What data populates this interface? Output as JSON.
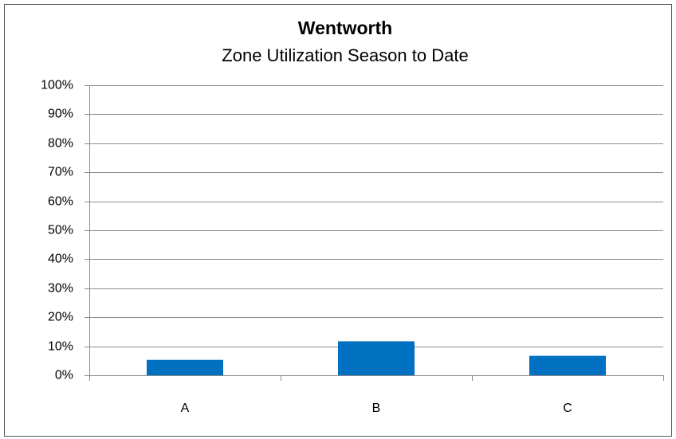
{
  "chart_data": {
    "type": "bar",
    "title": "Wentworth",
    "subtitle": "Zone Utilization Season to Date",
    "categories": [
      "A",
      "B",
      "C"
    ],
    "values": [
      5.3,
      11.7,
      6.7
    ],
    "color": "#0070c0",
    "ylim": [
      0,
      100
    ],
    "yticks": [
      {
        "value": 0,
        "label": "0%"
      },
      {
        "value": 10,
        "label": "10%"
      },
      {
        "value": 20,
        "label": "20%"
      },
      {
        "value": 30,
        "label": "30%"
      },
      {
        "value": 40,
        "label": "40%"
      },
      {
        "value": 50,
        "label": "50%"
      },
      {
        "value": 60,
        "label": "60%"
      },
      {
        "value": 70,
        "label": "70%"
      },
      {
        "value": 80,
        "label": "80%"
      },
      {
        "value": 90,
        "label": "90%"
      },
      {
        "value": 100,
        "label": "100%"
      }
    ],
    "grid": true
  }
}
